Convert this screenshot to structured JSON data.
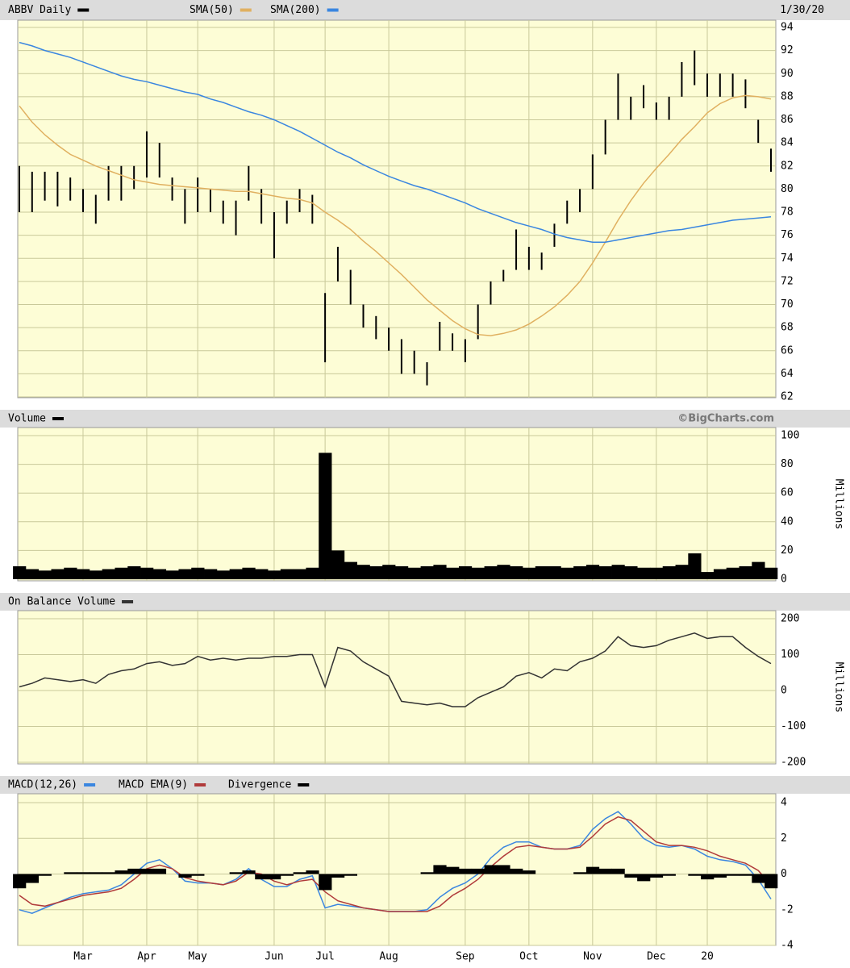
{
  "chart_data": [
    {
      "type": "ohlc",
      "title": "ABBV Daily",
      "date": "1/30/20",
      "ylim": [
        62,
        94
      ],
      "yticks": [
        62,
        64,
        66,
        68,
        70,
        72,
        74,
        76,
        78,
        80,
        82,
        84,
        86,
        88,
        90,
        92,
        94
      ],
      "grid": true,
      "series": [
        {
          "name": "ABBV Daily",
          "color": "#000000",
          "high": [
            82,
            81.5,
            81.5,
            81.5,
            81,
            80,
            79.5,
            82,
            82,
            82,
            85,
            84,
            81,
            80,
            81,
            80,
            79,
            79,
            82,
            80,
            78,
            79,
            80,
            79.5,
            71,
            75,
            73,
            70,
            69,
            68,
            67,
            66,
            65,
            68.5,
            67.5,
            67,
            70,
            72,
            73,
            76.5,
            75,
            74.5,
            77,
            79,
            80,
            83,
            86,
            90,
            88,
            89,
            87.5,
            88,
            91,
            92,
            90,
            90,
            90,
            89.5,
            86,
            83.5
          ],
          "low": [
            78,
            78,
            79,
            78.5,
            79,
            78,
            77,
            79,
            79,
            80,
            81,
            81,
            79,
            77,
            78,
            78,
            77,
            76,
            79,
            77,
            74,
            77,
            78,
            77,
            65,
            72,
            70,
            68,
            67,
            66,
            64,
            64,
            63,
            66,
            66,
            65,
            67,
            70,
            72,
            73,
            73,
            73,
            75,
            77,
            78,
            80,
            83,
            86,
            86,
            87,
            86,
            86,
            88,
            89,
            88,
            88,
            88,
            87,
            84,
            81.5
          ]
        },
        {
          "name": "SMA(50)",
          "color": "#e0b060",
          "values": [
            87.2,
            85.8,
            84.7,
            83.8,
            83,
            82.5,
            82,
            81.6,
            81.2,
            80.8,
            80.6,
            80.4,
            80.3,
            80.2,
            80.1,
            80,
            79.9,
            79.8,
            79.8,
            79.6,
            79.4,
            79.2,
            79.1,
            78.8,
            78,
            77.3,
            76.5,
            75.5,
            74.6,
            73.6,
            72.6,
            71.5,
            70.4,
            69.5,
            68.6,
            67.9,
            67.4,
            67.3,
            67.5,
            67.8,
            68.3,
            69,
            69.8,
            70.8,
            72,
            73.6,
            75.4,
            77.3,
            79,
            80.5,
            81.8,
            83,
            84.3,
            85.4,
            86.6,
            87.4,
            87.9,
            88.1,
            88,
            87.8
          ]
        },
        {
          "name": "SMA(200)",
          "color": "#3a86e0",
          "values": [
            92.7,
            92.4,
            92,
            91.7,
            91.4,
            91,
            90.6,
            90.2,
            89.8,
            89.5,
            89.3,
            89,
            88.7,
            88.4,
            88.2,
            87.8,
            87.5,
            87.1,
            86.7,
            86.4,
            86,
            85.5,
            85,
            84.4,
            83.8,
            83.2,
            82.7,
            82.1,
            81.6,
            81.1,
            80.7,
            80.3,
            80,
            79.6,
            79.2,
            78.8,
            78.3,
            77.9,
            77.5,
            77.1,
            76.8,
            76.5,
            76.1,
            75.8,
            75.6,
            75.4,
            75.4,
            75.6,
            75.8,
            76,
            76.2,
            76.4,
            76.5,
            76.7,
            76.9,
            77.1,
            77.3,
            77.4,
            77.5,
            77.6
          ]
        }
      ]
    },
    {
      "type": "bar",
      "credit": "©BigCharts.com",
      "y_label": "Millions",
      "ylim": [
        0,
        100
      ],
      "yticks": [
        0,
        20,
        40,
        60,
        80,
        100
      ],
      "grid": true,
      "series": [
        {
          "name": "Volume",
          "color": "#000000",
          "values": [
            9,
            7,
            6,
            7,
            8,
            7,
            6,
            7,
            8,
            9,
            8,
            7,
            6,
            7,
            8,
            7,
            6,
            7,
            8,
            7,
            6,
            7,
            7,
            8,
            88,
            20,
            12,
            10,
            9,
            10,
            9,
            8,
            9,
            10,
            8,
            9,
            8,
            9,
            10,
            9,
            8,
            9,
            9,
            8,
            9,
            10,
            9,
            10,
            9,
            8,
            8,
            9,
            10,
            18,
            5,
            7,
            8,
            9,
            12,
            8
          ]
        }
      ]
    },
    {
      "type": "line",
      "y_label": "Millions",
      "ylim": [
        -200,
        200
      ],
      "yticks": [
        -200,
        -100,
        0,
        100,
        200
      ],
      "grid": true,
      "series": [
        {
          "name": "On Balance Volume",
          "color": "#333333",
          "values": [
            10,
            20,
            35,
            30,
            25,
            30,
            20,
            45,
            55,
            60,
            75,
            80,
            70,
            75,
            95,
            85,
            90,
            85,
            90,
            90,
            95,
            95,
            100,
            100,
            10,
            120,
            110,
            80,
            60,
            40,
            -30,
            -35,
            -40,
            -35,
            -45,
            -45,
            -20,
            -5,
            10,
            40,
            50,
            35,
            60,
            55,
            80,
            90,
            110,
            150,
            125,
            120,
            125,
            140,
            150,
            160,
            145,
            150,
            150,
            120,
            95,
            75
          ]
        }
      ]
    },
    {
      "type": "macd",
      "categories": [
        null,
        null,
        null,
        null,
        null,
        "Mar",
        null,
        null,
        null,
        null,
        "Apr",
        null,
        null,
        null,
        "May",
        null,
        null,
        null,
        null,
        null,
        "Jun",
        null,
        null,
        null,
        "Jul",
        null,
        null,
        null,
        null,
        "Aug",
        null,
        null,
        null,
        null,
        null,
        "Sep",
        null,
        null,
        null,
        null,
        "Oct",
        null,
        null,
        null,
        null,
        "Nov",
        null,
        null,
        null,
        null,
        "Dec",
        null,
        null,
        null,
        "20",
        null,
        null,
        null,
        null,
        null
      ],
      "ylim": [
        -4,
        4
      ],
      "yticks": [
        -4,
        -2,
        0,
        2,
        4
      ],
      "grid": true,
      "series": [
        {
          "name": "MACD(12,26)",
          "color": "#3a86e0",
          "values": [
            -2,
            -2.2,
            -1.9,
            -1.6,
            -1.3,
            -1.1,
            -1,
            -0.9,
            -0.6,
            0,
            0.6,
            0.8,
            0.3,
            -0.4,
            -0.5,
            -0.5,
            -0.6,
            -0.3,
            0.3,
            -0.3,
            -0.7,
            -0.7,
            -0.3,
            -0.1,
            -1.9,
            -1.7,
            -1.8,
            -1.9,
            -2,
            -2.1,
            -2.1,
            -2.1,
            -2,
            -1.3,
            -0.8,
            -0.5,
            0,
            0.9,
            1.5,
            1.8,
            1.8,
            1.5,
            1.4,
            1.4,
            1.6,
            2.5,
            3.1,
            3.5,
            2.8,
            2,
            1.6,
            1.5,
            1.6,
            1.4,
            1,
            0.8,
            0.7,
            0.5,
            -0.3,
            -1.4
          ]
        },
        {
          "name": "MACD EMA(9)",
          "color": "#b03a3a",
          "values": [
            -1.2,
            -1.7,
            -1.8,
            -1.6,
            -1.4,
            -1.2,
            -1.1,
            -1,
            -0.8,
            -0.3,
            0.3,
            0.5,
            0.3,
            -0.2,
            -0.4,
            -0.5,
            -0.6,
            -0.4,
            0.1,
            0,
            -0.4,
            -0.6,
            -0.4,
            -0.3,
            -1,
            -1.5,
            -1.7,
            -1.9,
            -2,
            -2.1,
            -2.1,
            -2.1,
            -2.1,
            -1.8,
            -1.2,
            -0.8,
            -0.3,
            0.4,
            1,
            1.5,
            1.6,
            1.5,
            1.4,
            1.4,
            1.5,
            2.1,
            2.8,
            3.2,
            3,
            2.4,
            1.8,
            1.6,
            1.6,
            1.5,
            1.3,
            1,
            0.8,
            0.6,
            0.2,
            -0.6
          ]
        },
        {
          "name": "Divergence",
          "color": "#000000",
          "style": "bar",
          "values": [
            -0.8,
            -0.5,
            -0.1,
            0,
            0.1,
            0.1,
            0.1,
            0.1,
            0.2,
            0.3,
            0.3,
            0.3,
            0,
            -0.2,
            -0.1,
            0,
            0,
            0.1,
            0.2,
            -0.3,
            -0.3,
            -0.1,
            0.1,
            0.2,
            -0.9,
            -0.2,
            -0.1,
            0,
            0,
            0,
            0,
            0,
            0.1,
            0.5,
            0.4,
            0.3,
            0.3,
            0.5,
            0.5,
            0.3,
            0.2,
            0,
            0,
            0,
            0.1,
            0.4,
            0.3,
            0.3,
            -0.2,
            -0.4,
            -0.2,
            -0.1,
            0,
            -0.1,
            -0.3,
            -0.2,
            -0.1,
            -0.1,
            -0.5,
            -0.8
          ]
        }
      ]
    }
  ]
}
